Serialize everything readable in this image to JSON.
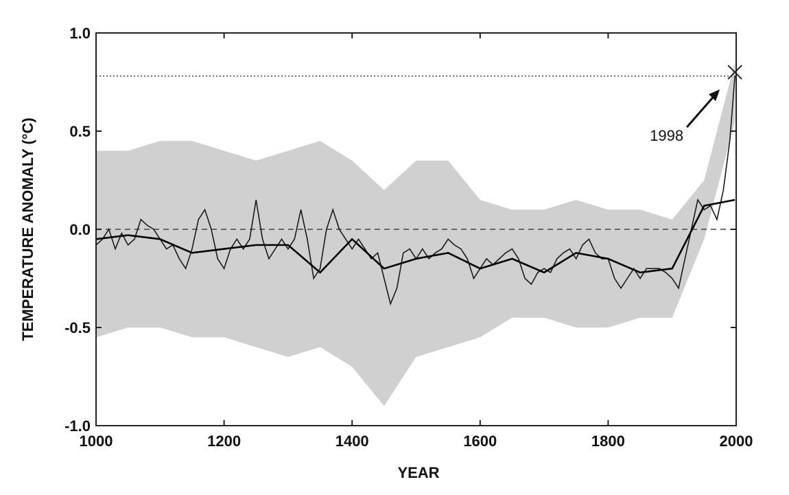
{
  "chart_data": {
    "type": "line",
    "xlabel": "YEAR",
    "ylabel": "TEMPERATURE ANOMALY (°C)",
    "xlim": [
      1000,
      2000
    ],
    "ylim": [
      -1.0,
      1.0
    ],
    "xticks": [
      1000,
      1200,
      1400,
      1600,
      1800,
      2000
    ],
    "yticks": [
      {
        "value": -1.0,
        "label": "-1.0"
      },
      -0.5,
      {
        "value": 0.0,
        "label": "0.0"
      },
      0.5,
      {
        "value": 1.0,
        "label": "1.0"
      }
    ],
    "band": {
      "color": "#c8c8c8",
      "x": [
        1000,
        1050,
        1100,
        1150,
        1200,
        1250,
        1300,
        1350,
        1400,
        1450,
        1500,
        1550,
        1600,
        1650,
        1700,
        1750,
        1800,
        1850,
        1900,
        1950,
        1998
      ],
      "upper": [
        0.4,
        0.4,
        0.45,
        0.45,
        0.4,
        0.35,
        0.4,
        0.45,
        0.35,
        0.2,
        0.35,
        0.35,
        0.15,
        0.1,
        0.1,
        0.15,
        0.1,
        0.1,
        0.05,
        0.25,
        0.85
      ],
      "lower": [
        -0.55,
        -0.5,
        -0.5,
        -0.55,
        -0.55,
        -0.6,
        -0.65,
        -0.6,
        -0.7,
        -0.9,
        -0.65,
        -0.6,
        -0.55,
        -0.45,
        -0.45,
        -0.5,
        -0.5,
        -0.45,
        -0.45,
        -0.05,
        0.55
      ]
    },
    "series": [
      {
        "color": "#1a1a1a",
        "x": [
          1000,
          1010,
          1020,
          1030,
          1040,
          1050,
          1060,
          1070,
          1080,
          1090,
          1100,
          1110,
          1120,
          1130,
          1140,
          1150,
          1160,
          1170,
          1180,
          1190,
          1200,
          1210,
          1220,
          1230,
          1240,
          1250,
          1260,
          1270,
          1280,
          1290,
          1300,
          1310,
          1320,
          1330,
          1340,
          1350,
          1360,
          1370,
          1380,
          1390,
          1400,
          1410,
          1420,
          1430,
          1440,
          1450,
          1460,
          1470,
          1480,
          1490,
          1500,
          1510,
          1520,
          1530,
          1540,
          1550,
          1560,
          1570,
          1580,
          1590,
          1600,
          1610,
          1620,
          1630,
          1640,
          1650,
          1660,
          1670,
          1680,
          1690,
          1700,
          1710,
          1720,
          1730,
          1740,
          1750,
          1760,
          1770,
          1780,
          1790,
          1800,
          1810,
          1820,
          1830,
          1840,
          1850,
          1860,
          1870,
          1880,
          1890,
          1900,
          1910,
          1920,
          1930,
          1940,
          1950,
          1960,
          1970,
          1980,
          1990,
          1998
        ],
        "values": [
          -0.08,
          -0.05,
          0.0,
          -0.1,
          -0.02,
          -0.08,
          -0.05,
          0.05,
          0.02,
          0.0,
          -0.05,
          -0.1,
          -0.08,
          -0.15,
          -0.2,
          -0.1,
          0.05,
          0.1,
          0.0,
          -0.15,
          -0.2,
          -0.1,
          -0.05,
          -0.1,
          -0.05,
          0.15,
          -0.05,
          -0.15,
          -0.1,
          -0.05,
          -0.1,
          -0.05,
          0.1,
          -0.05,
          -0.25,
          -0.2,
          0.0,
          0.1,
          0.0,
          -0.05,
          -0.1,
          -0.05,
          -0.1,
          -0.15,
          -0.12,
          -0.25,
          -0.38,
          -0.3,
          -0.12,
          -0.1,
          -0.15,
          -0.1,
          -0.15,
          -0.12,
          -0.1,
          -0.05,
          -0.08,
          -0.1,
          -0.15,
          -0.25,
          -0.2,
          -0.15,
          -0.18,
          -0.15,
          -0.12,
          -0.1,
          -0.15,
          -0.25,
          -0.28,
          -0.22,
          -0.2,
          -0.22,
          -0.15,
          -0.12,
          -0.1,
          -0.15,
          -0.08,
          -0.05,
          -0.12,
          -0.15,
          -0.15,
          -0.25,
          -0.3,
          -0.25,
          -0.2,
          -0.25,
          -0.2,
          -0.2,
          -0.2,
          -0.22,
          -0.25,
          -0.3,
          -0.15,
          0.0,
          0.15,
          0.1,
          0.12,
          0.05,
          0.2,
          0.45,
          0.78
        ]
      },
      {
        "color": "#000000",
        "x": [
          1000,
          1050,
          1100,
          1150,
          1200,
          1250,
          1300,
          1350,
          1400,
          1450,
          1500,
          1550,
          1600,
          1650,
          1700,
          1750,
          1800,
          1850,
          1900,
          1950,
          1998
        ],
        "values": [
          -0.05,
          -0.03,
          -0.05,
          -0.12,
          -0.1,
          -0.08,
          -0.08,
          -0.22,
          -0.05,
          -0.2,
          -0.15,
          -0.12,
          -0.2,
          -0.15,
          -0.22,
          -0.12,
          -0.15,
          -0.22,
          -0.2,
          0.12,
          0.15
        ]
      }
    ],
    "reference_lines": [
      {
        "y": 0.0,
        "style": "dashed"
      },
      {
        "y": 0.78,
        "style": "dotted"
      }
    ],
    "annotation": {
      "text": "1998",
      "x": 1998,
      "y": 0.8
    }
  }
}
